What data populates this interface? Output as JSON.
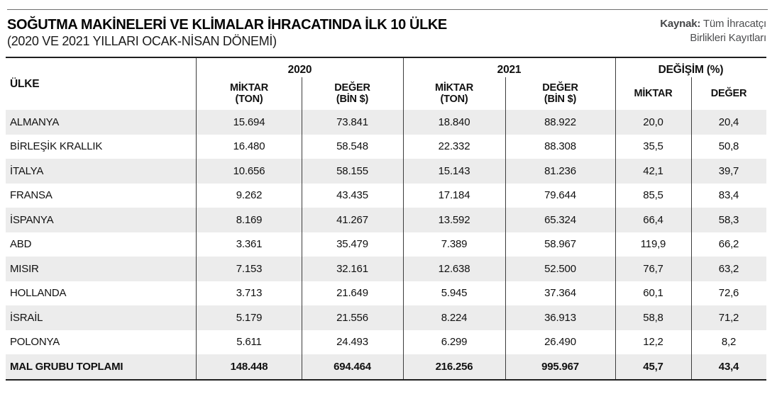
{
  "header": {
    "title": "SOĞUTMA MAKİNELERİ VE KLİMALAR İHRACATINDA İLK 10 ÜLKE",
    "subtitle": "(2020 VE 2021 YILLARI OCAK-NİSAN DÖNEMİ)"
  },
  "source": {
    "label": "Kaynak:",
    "line1": "Tüm İhracatçı",
    "line2": "Birlikleri Kayıtları"
  },
  "table_head": {
    "country_col": "ÜLKE",
    "group_2020": "2020",
    "group_2021": "2021",
    "group_change": "DEĞİŞİM (%)",
    "sub_amount_line1": "MİKTAR",
    "sub_amount_line2": "(TON)",
    "sub_value_line1": "DEĞER",
    "sub_value_line2": "(BİN $)",
    "change_amount": "MİKTAR",
    "change_value": "DEĞER"
  },
  "chart_data": {
    "type": "table",
    "title": "SOĞUTMA MAKİNELERİ VE KLİMALAR İHRACATINDA İLK 10 ÜLKE",
    "subtitle": "(2020 VE 2021 YILLARI OCAK-NİSAN DÖNEMİ)",
    "source": "Kaynak: Tüm İhracatçı Birlikleri Kayıtları",
    "columns": [
      "ÜLKE",
      "2020 MİKTAR (TON)",
      "2020 DEĞER (BİN $)",
      "2021 MİKTAR (TON)",
      "2021 DEĞER (BİN $)",
      "DEĞİŞİM (%) MİKTAR",
      "DEĞİŞİM (%) DEĞER"
    ],
    "rows": [
      {
        "country": "ALMANYA",
        "m2020": "15.694",
        "d2020": "73.841",
        "m2021": "18.840",
        "d2021": "88.922",
        "cm": "20,0",
        "cd": "20,4"
      },
      {
        "country": "BİRLEŞİK KRALLIK",
        "m2020": "16.480",
        "d2020": "58.548",
        "m2021": "22.332",
        "d2021": "88.308",
        "cm": "35,5",
        "cd": "50,8"
      },
      {
        "country": "İTALYA",
        "m2020": "10.656",
        "d2020": "58.155",
        "m2021": "15.143",
        "d2021": "81.236",
        "cm": "42,1",
        "cd": "39,7"
      },
      {
        "country": "FRANSA",
        "m2020": "9.262",
        "d2020": "43.435",
        "m2021": "17.184",
        "d2021": "79.644",
        "cm": "85,5",
        "cd": "83,4"
      },
      {
        "country": "İSPANYA",
        "m2020": "8.169",
        "d2020": "41.267",
        "m2021": "13.592",
        "d2021": "65.324",
        "cm": "66,4",
        "cd": "58,3"
      },
      {
        "country": "ABD",
        "m2020": "3.361",
        "d2020": "35.479",
        "m2021": "7.389",
        "d2021": "58.967",
        "cm": "119,9",
        "cd": "66,2"
      },
      {
        "country": "MISIR",
        "m2020": "7.153",
        "d2020": "32.161",
        "m2021": "12.638",
        "d2021": "52.500",
        "cm": "76,7",
        "cd": "63,2"
      },
      {
        "country": "HOLLANDA",
        "m2020": "3.713",
        "d2020": "21.649",
        "m2021": "5.945",
        "d2021": "37.364",
        "cm": "60,1",
        "cd": "72,6"
      },
      {
        "country": "İSRAİL",
        "m2020": "5.179",
        "d2020": "21.556",
        "m2021": "8.224",
        "d2021": "36.913",
        "cm": "58,8",
        "cd": "71,2"
      },
      {
        "country": "POLONYA",
        "m2020": "5.611",
        "d2020": "24.493",
        "m2021": "6.299",
        "d2021": "26.490",
        "cm": "12,2",
        "cd": "8,2"
      },
      {
        "country": "MAL GRUBU TOPLAMI",
        "m2020": "148.448",
        "d2020": "694.464",
        "m2021": "216.256",
        "d2021": "995.967",
        "cm": "45,7",
        "cd": "43,4"
      }
    ],
    "colors": {
      "row_band": "#ececec",
      "rule": "#3c3c3c",
      "text": "#111111",
      "source_text": "#4d4e50"
    },
    "layout": {
      "alternating_row_shading": true,
      "total_row_bold": true
    }
  }
}
